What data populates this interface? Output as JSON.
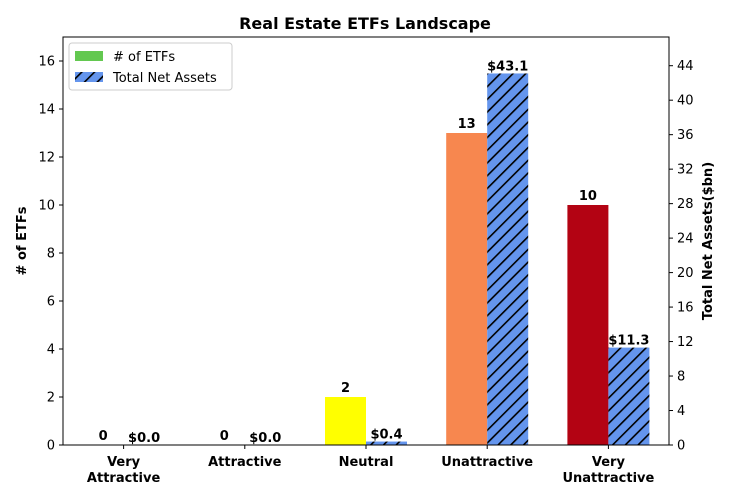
{
  "chart_data": {
    "type": "bar",
    "title": "Real Estate ETFs Landscape",
    "categories": [
      [
        "Very",
        "Attractive"
      ],
      [
        "Attractive"
      ],
      [
        "Neutral"
      ],
      [
        "Unattractive"
      ],
      [
        "Very",
        "Unattractive"
      ]
    ],
    "series": [
      {
        "name": "# of ETFs",
        "axis": "left",
        "values": [
          0,
          0,
          2,
          13,
          10
        ],
        "labels": [
          "0",
          "0",
          "2",
          "13",
          "10"
        ],
        "colors": [
          "#63c850",
          "#63c850",
          "#ffff00",
          "#f7874f",
          "#b30313"
        ],
        "legend_color": "#63c850"
      },
      {
        "name": "Total Net Assets",
        "axis": "right",
        "values": [
          0.0,
          0.0,
          0.4,
          43.1,
          11.3
        ],
        "labels": [
          "$0.0",
          "$0.0",
          "$0.4",
          "$43.1",
          "$11.3"
        ],
        "color": "#6495ed",
        "hatch": "diagonal-black"
      }
    ],
    "ylabel_left": "# of ETFs",
    "ylabel_right": "Total Net Assets($bn)",
    "ylim_left": [
      0,
      17
    ],
    "ylim_right": [
      0,
      47.33
    ],
    "yticks_left": [
      0,
      2,
      4,
      6,
      8,
      10,
      12,
      14,
      16
    ],
    "yticks_right": [
      0,
      4,
      8,
      12,
      16,
      20,
      24,
      28,
      32,
      36,
      40,
      44
    ],
    "grid": false,
    "legend_position": "top-left"
  }
}
